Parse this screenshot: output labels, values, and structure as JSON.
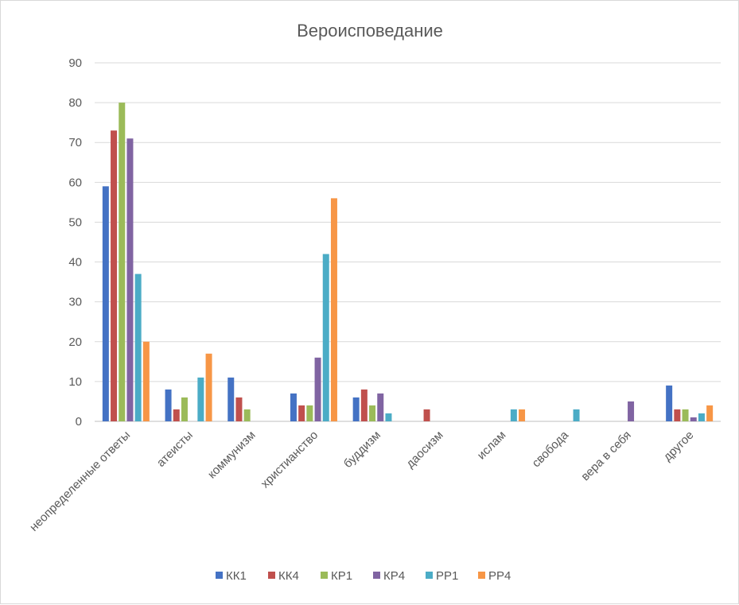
{
  "chart_data": {
    "type": "bar",
    "title": "Вероисповедание",
    "xlabel": "",
    "ylabel": "",
    "ylim": [
      0,
      90
    ],
    "yticks": [
      0,
      10,
      20,
      30,
      40,
      50,
      60,
      70,
      80,
      90
    ],
    "grid": true,
    "legend_position": "bottom",
    "categories": [
      "неопределенные ответы",
      "атеисты",
      "коммунизм",
      "христианство",
      "буддизм",
      "даосизм",
      "ислам",
      "свобода",
      "вера в себя",
      "другое"
    ],
    "series": [
      {
        "name": "КК1",
        "color": "#4472C4",
        "values": [
          59,
          8,
          11,
          7,
          6,
          0,
          0,
          0,
          0,
          9
        ]
      },
      {
        "name": "КК4",
        "color": "#C0504D",
        "values": [
          73,
          3,
          6,
          4,
          8,
          3,
          0,
          0,
          0,
          3
        ]
      },
      {
        "name": "КР1",
        "color": "#9BBB59",
        "values": [
          80,
          6,
          3,
          4,
          4,
          0,
          0,
          0,
          0,
          3
        ]
      },
      {
        "name": "КР4",
        "color": "#8064A2",
        "values": [
          71,
          0,
          0,
          16,
          7,
          0,
          0,
          0,
          5,
          1
        ]
      },
      {
        "name": "РР1",
        "color": "#4BACC6",
        "values": [
          37,
          11,
          0,
          42,
          2,
          0,
          3,
          3,
          0,
          2
        ]
      },
      {
        "name": "РР4",
        "color": "#F79646",
        "values": [
          20,
          17,
          0,
          56,
          0,
          0,
          3,
          0,
          0,
          4
        ]
      }
    ]
  }
}
